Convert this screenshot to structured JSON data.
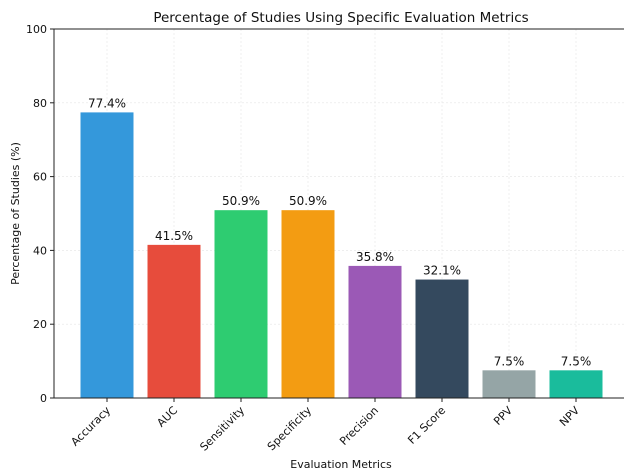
{
  "chart_data": {
    "type": "bar",
    "title": "Percentage of Studies Using Specific Evaluation Metrics",
    "xlabel": "Evaluation Metrics",
    "ylabel": "Percentage of Studies (%)",
    "ylim": [
      0,
      100
    ],
    "yticks": [
      0,
      20,
      40,
      60,
      80,
      100
    ],
    "grid": true,
    "categories": [
      "Accuracy",
      "AUC",
      "Sensitivity",
      "Specificity",
      "Precision",
      "F1 Score",
      "PPV",
      "NPV"
    ],
    "values": [
      77.4,
      41.5,
      50.9,
      50.9,
      35.8,
      32.1,
      7.5,
      7.5
    ],
    "data_labels": [
      "77.4%",
      "41.5%",
      "50.9%",
      "50.9%",
      "35.8%",
      "32.1%",
      "7.5%",
      "7.5%"
    ],
    "colors": [
      "#3498db",
      "#e74c3c",
      "#2ecc71",
      "#f39c12",
      "#9b59b6",
      "#34495e",
      "#95a5a6",
      "#1abc9c"
    ]
  }
}
